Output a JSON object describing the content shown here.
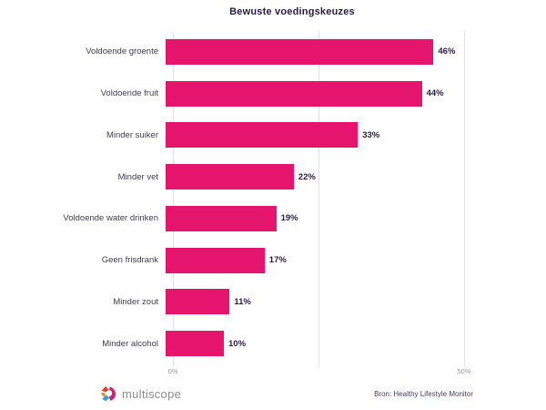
{
  "title": "Bewuste voedingskeuzes",
  "chart_data": {
    "type": "bar",
    "orientation": "horizontal",
    "title": "Bewuste voedingskeuzes",
    "categories": [
      "Voldoende groente",
      "Voldoende fruit",
      "Minder suiker",
      "Minder vet",
      "Voldoende water drinken",
      "Geen frisdrank",
      "Minder zout",
      "Minder alcohol"
    ],
    "values": [
      46,
      44,
      33,
      22,
      19,
      17,
      11,
      10
    ],
    "value_labels": [
      "46%",
      "44%",
      "33%",
      "22%",
      "19%",
      "17%",
      "11%",
      "10%"
    ],
    "xlim": [
      0,
      50
    ],
    "xticks": [
      {
        "value": 0,
        "label": "0%"
      },
      {
        "value": 25,
        "label": ""
      },
      {
        "value": 50,
        "label": "50%"
      }
    ],
    "grid": "vertical",
    "legend": "none",
    "bar_color": "#E5156E"
  },
  "colors": {
    "bar": "#E5156E",
    "title_text": "#2B1B4D",
    "value_text": "#2B1B4D",
    "category_text": "#3e3e52",
    "tick_text": "#9a9a9a",
    "gridline": "#e4e4e4",
    "source_text": "#4c3a66",
    "logo_text": "#8e8e8e",
    "logo_red": "#E6392B",
    "logo_orange": "#F0812C",
    "logo_blue": "#33A3DC",
    "logo_magenta": "#D81B70"
  },
  "footer": {
    "logo_text": "multiscope",
    "source": "Bron: Healthy Lifestyle Monitor"
  }
}
